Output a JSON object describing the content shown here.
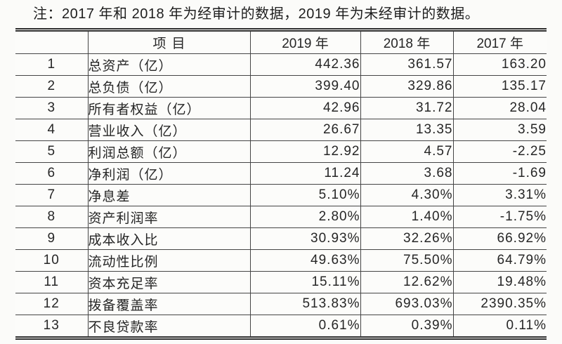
{
  "note": "注：2017 年和 2018 年为经审计的数据，2019 年为未经审计的数据。",
  "colors": {
    "background": "#fbfbf9",
    "text": "#262626",
    "border": "#454545"
  },
  "table": {
    "headers": {
      "index": "",
      "item": "项目",
      "y2019": "2019 年",
      "y2018": "2018 年",
      "y2017": "2017 年"
    },
    "rows": [
      {
        "no": "1",
        "item": "总资产（亿）",
        "y2019": "442.36",
        "y2018": "361.57",
        "y2017": "163.20"
      },
      {
        "no": "2",
        "item": "总负债（亿）",
        "y2019": "399.40",
        "y2018": "329.86",
        "y2017": "135.17"
      },
      {
        "no": "3",
        "item": "所有者权益（亿）",
        "y2019": "42.96",
        "y2018": "31.72",
        "y2017": "28.04"
      },
      {
        "no": "4",
        "item": "营业收入（亿）",
        "y2019": "26.67",
        "y2018": "13.35",
        "y2017": "3.59"
      },
      {
        "no": "5",
        "item": "利润总额（亿）",
        "y2019": "12.92",
        "y2018": "4.57",
        "y2017": "-2.25"
      },
      {
        "no": "6",
        "item": "净利润（亿）",
        "y2019": "11.24",
        "y2018": "3.68",
        "y2017": "-1.69"
      },
      {
        "no": "7",
        "item": "净息差",
        "y2019": "5.10%",
        "y2018": "4.30%",
        "y2017": "3.31%"
      },
      {
        "no": "8",
        "item": "资产利润率",
        "y2019": "2.80%",
        "y2018": "1.40%",
        "y2017": "-1.75%"
      },
      {
        "no": "9",
        "item": "成本收入比",
        "y2019": "30.93%",
        "y2018": "32.26%",
        "y2017": "66.92%"
      },
      {
        "no": "10",
        "item": "流动性比例",
        "y2019": "49.63%",
        "y2018": "75.50%",
        "y2017": "64.79%"
      },
      {
        "no": "11",
        "item": "资本充足率",
        "y2019": "15.11%",
        "y2018": "12.62%",
        "y2017": "19.48%"
      },
      {
        "no": "12",
        "item": "拨备覆盖率",
        "y2019": "513.83%",
        "y2018": "693.03%",
        "y2017": "2390.35%"
      },
      {
        "no": "13",
        "item": "不良贷款率",
        "y2019": "0.61%",
        "y2018": "0.39%",
        "y2017": "0.11%"
      }
    ]
  }
}
